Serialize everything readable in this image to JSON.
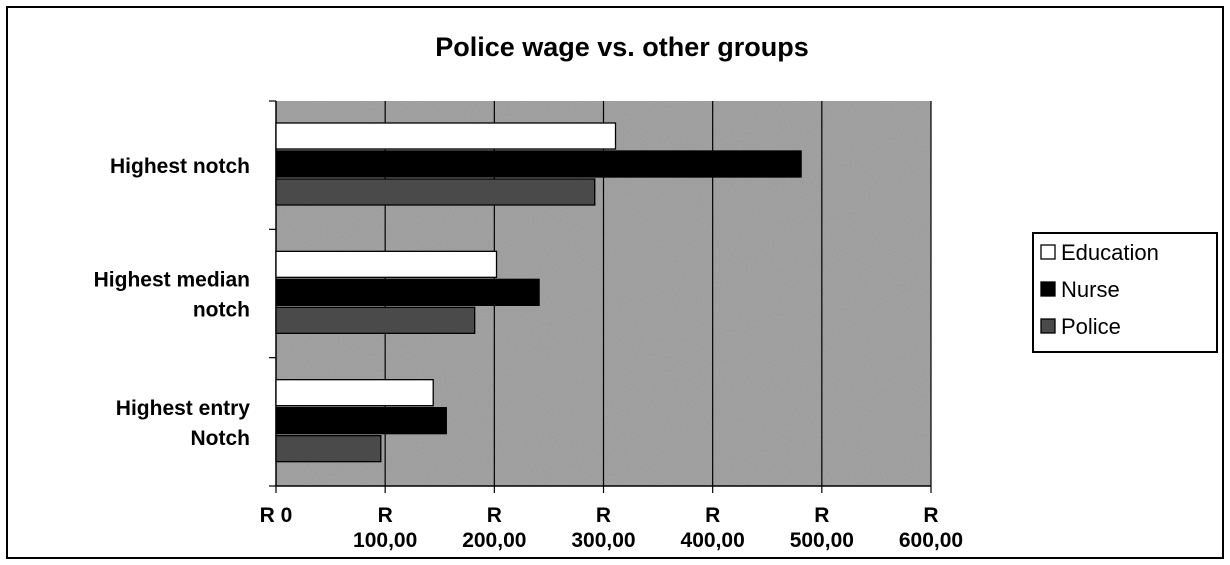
{
  "chart_data": {
    "type": "bar",
    "orientation": "horizontal",
    "title": "Police wage vs. other groups",
    "categories": [
      "Highest notch",
      "Highest median notch",
      "Highest entry Notch"
    ],
    "category_lines": [
      [
        "Highest notch"
      ],
      [
        "Highest median",
        "notch"
      ],
      [
        "Highest entry",
        "Notch"
      ]
    ],
    "series": [
      {
        "name": "Education",
        "values": [
          311,
          202,
          144
        ]
      },
      {
        "name": "Nurse",
        "values": [
          481,
          241,
          156
        ]
      },
      {
        "name": "Police",
        "values": [
          292,
          182,
          96
        ]
      }
    ],
    "xlim": [
      0,
      600
    ],
    "xticks": [
      0,
      100,
      200,
      300,
      400,
      500,
      600
    ],
    "xtick_labels": [
      [
        "R 0"
      ],
      [
        "R",
        "100,00"
      ],
      [
        "R",
        "200,00"
      ],
      [
        "R",
        "300,00"
      ],
      [
        "R",
        "400,00"
      ],
      [
        "R",
        "500,00"
      ],
      [
        "R",
        "600,00"
      ]
    ],
    "grid": "vertical",
    "legend_position": "right",
    "colors": {
      "Education": "#ffffff",
      "Nurse": "#000000",
      "Police": "#4a4a4a",
      "plot_background": "#a6a6a6"
    }
  }
}
